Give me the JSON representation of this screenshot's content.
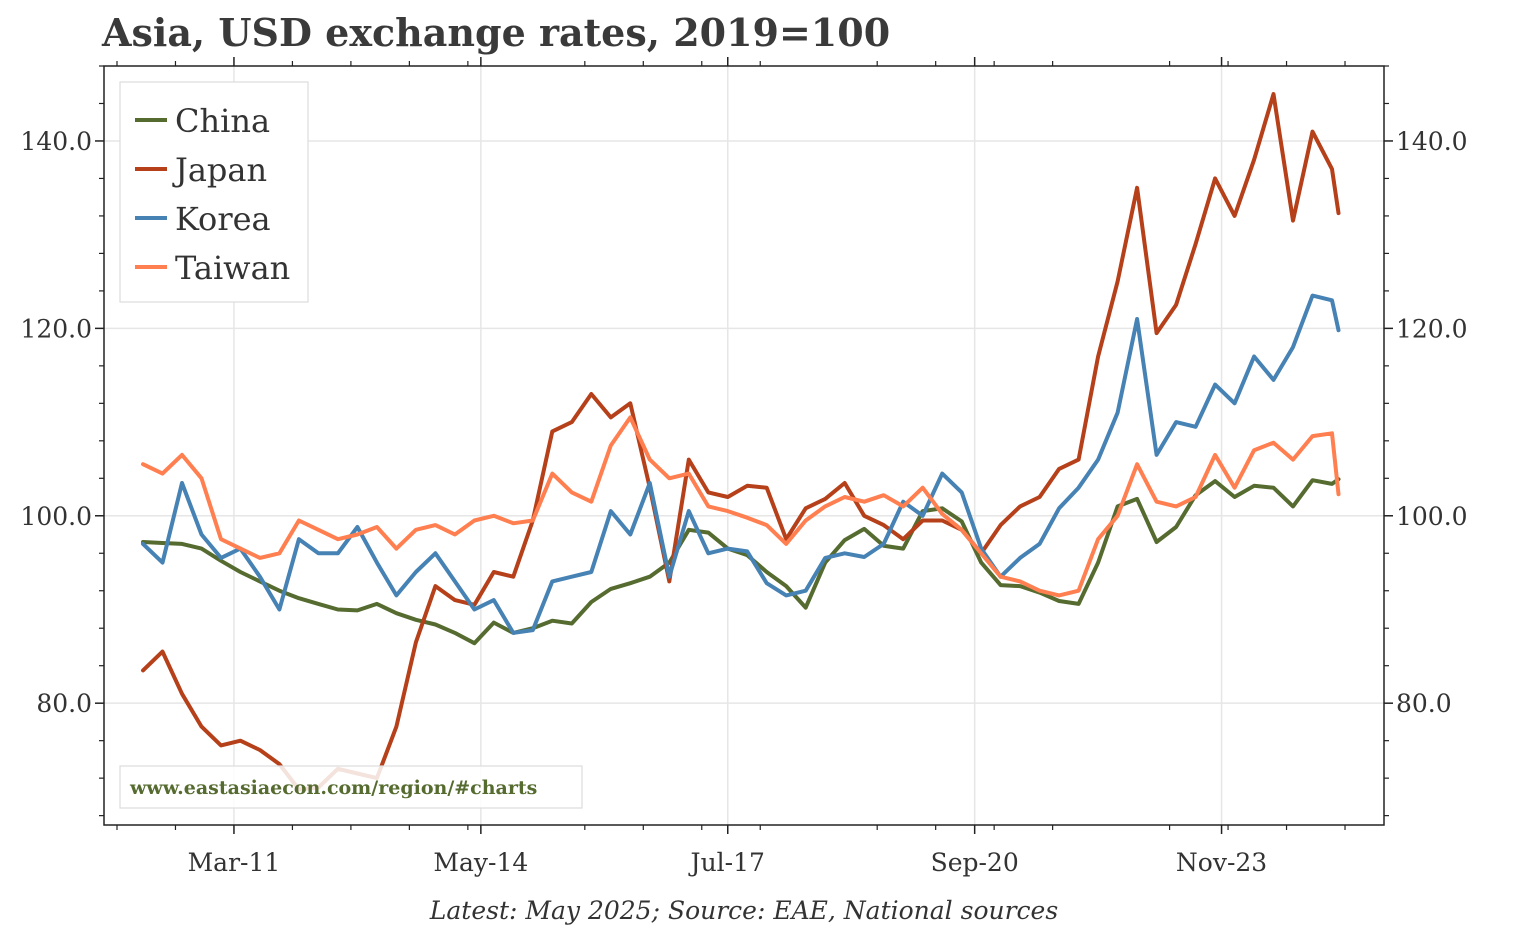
{
  "chart_data": {
    "type": "line",
    "title": "Asia, USD exchange rates, 2019=100",
    "xlabel": "",
    "ylabel": "",
    "ylim": [
      67,
      148
    ],
    "y_ticks": [
      80.0,
      100.0,
      120.0,
      140.0
    ],
    "y_tick_labels": [
      "80.0",
      "100.0",
      "120.0",
      "140.0"
    ],
    "x_tick_labels": [
      "Mar-11",
      "May-14",
      "Jul-17",
      "Sep-20",
      "Nov-23"
    ],
    "x_tick_dates": [
      "2011-03",
      "2014-05",
      "2017-07",
      "2020-09",
      "2023-11"
    ],
    "x_range": [
      "2009-07",
      "2025-12"
    ],
    "grid": true,
    "legend_position": "top-left",
    "source": "Latest: May 2025; Source: EAE, National sources",
    "watermark": "www.eastasiaecon.com/region/#charts",
    "series": [
      {
        "name": "China",
        "color": "#556b2f",
        "points": [
          [
            "2010-01",
            97.2
          ],
          [
            "2010-04",
            97.1
          ],
          [
            "2010-07",
            97.0
          ],
          [
            "2010-10",
            96.5
          ],
          [
            "2011-01",
            95.2
          ],
          [
            "2011-04",
            94.0
          ],
          [
            "2011-07",
            93.0
          ],
          [
            "2011-10",
            92.0
          ],
          [
            "2012-01",
            91.2
          ],
          [
            "2012-04",
            90.6
          ],
          [
            "2012-07",
            90.0
          ],
          [
            "2012-10",
            89.9
          ],
          [
            "2013-01",
            90.6
          ],
          [
            "2013-04",
            89.6
          ],
          [
            "2013-07",
            88.9
          ],
          [
            "2013-10",
            88.4
          ],
          [
            "2014-01",
            87.5
          ],
          [
            "2014-04",
            86.4
          ],
          [
            "2014-07",
            88.6
          ],
          [
            "2014-10",
            87.5
          ],
          [
            "2015-01",
            88.0
          ],
          [
            "2015-04",
            88.8
          ],
          [
            "2015-07",
            88.5
          ],
          [
            "2015-10",
            90.8
          ],
          [
            "2016-01",
            92.2
          ],
          [
            "2016-04",
            92.8
          ],
          [
            "2016-07",
            93.5
          ],
          [
            "2016-10",
            95.0
          ],
          [
            "2017-01",
            98.5
          ],
          [
            "2017-04",
            98.2
          ],
          [
            "2017-07",
            96.5
          ],
          [
            "2017-10",
            95.8
          ],
          [
            "2018-01",
            94.0
          ],
          [
            "2018-04",
            92.5
          ],
          [
            "2018-07",
            90.2
          ],
          [
            "2018-10",
            95.0
          ],
          [
            "2019-01",
            97.4
          ],
          [
            "2019-04",
            98.6
          ],
          [
            "2019-07",
            96.8
          ],
          [
            "2019-10",
            96.5
          ],
          [
            "2020-01",
            100.5
          ],
          [
            "2020-04",
            100.8
          ],
          [
            "2020-07",
            99.4
          ],
          [
            "2020-10",
            95.0
          ],
          [
            "2021-01",
            92.6
          ],
          [
            "2021-04",
            92.5
          ],
          [
            "2021-07",
            91.8
          ],
          [
            "2021-10",
            90.9
          ],
          [
            "2022-01",
            90.6
          ],
          [
            "2022-04",
            95.0
          ],
          [
            "2022-07",
            101.0
          ],
          [
            "2022-10",
            101.8
          ],
          [
            "2023-01",
            97.2
          ],
          [
            "2023-04",
            98.8
          ],
          [
            "2023-07",
            102.2
          ],
          [
            "2023-10",
            103.7
          ],
          [
            "2024-01",
            102.0
          ],
          [
            "2024-04",
            103.2
          ],
          [
            "2024-07",
            103.0
          ],
          [
            "2024-10",
            101.0
          ],
          [
            "2025-01",
            103.8
          ],
          [
            "2025-04",
            103.4
          ],
          [
            "2025-05",
            103.9
          ]
        ]
      },
      {
        "name": "Japan",
        "color": "#b5401a",
        "points": [
          [
            "2010-01",
            83.5
          ],
          [
            "2010-04",
            85.5
          ],
          [
            "2010-07",
            81.0
          ],
          [
            "2010-10",
            77.5
          ],
          [
            "2011-01",
            75.5
          ],
          [
            "2011-04",
            76.0
          ],
          [
            "2011-07",
            75.0
          ],
          [
            "2011-10",
            73.5
          ],
          [
            "2012-01",
            70.8
          ],
          [
            "2012-04",
            71.0
          ],
          [
            "2012-07",
            73.0
          ],
          [
            "2012-10",
            72.5
          ],
          [
            "2013-01",
            72.0
          ],
          [
            "2013-04",
            77.5
          ],
          [
            "2013-07",
            86.5
          ],
          [
            "2013-10",
            92.5
          ],
          [
            "2014-01",
            91.0
          ],
          [
            "2014-04",
            90.5
          ],
          [
            "2014-07",
            94.0
          ],
          [
            "2014-10",
            93.5
          ],
          [
            "2015-01",
            99.5
          ],
          [
            "2015-04",
            109.0
          ],
          [
            "2015-07",
            110.0
          ],
          [
            "2015-10",
            113.0
          ],
          [
            "2016-01",
            110.5
          ],
          [
            "2016-04",
            112.0
          ],
          [
            "2016-07",
            103.0
          ],
          [
            "2016-10",
            93.0
          ],
          [
            "2017-01",
            106.0
          ],
          [
            "2017-04",
            102.5
          ],
          [
            "2017-07",
            102.0
          ],
          [
            "2017-10",
            103.2
          ],
          [
            "2018-01",
            103.0
          ],
          [
            "2018-04",
            97.5
          ],
          [
            "2018-07",
            100.8
          ],
          [
            "2018-10",
            101.8
          ],
          [
            "2019-01",
            103.5
          ],
          [
            "2019-04",
            100.0
          ],
          [
            "2019-07",
            99.0
          ],
          [
            "2019-10",
            97.5
          ],
          [
            "2020-01",
            99.5
          ],
          [
            "2020-04",
            99.5
          ],
          [
            "2020-07",
            98.5
          ],
          [
            "2020-10",
            96.0
          ],
          [
            "2021-01",
            99.0
          ],
          [
            "2021-04",
            101.0
          ],
          [
            "2021-07",
            102.0
          ],
          [
            "2021-10",
            105.0
          ],
          [
            "2022-01",
            106.0
          ],
          [
            "2022-04",
            117.0
          ],
          [
            "2022-07",
            125.0
          ],
          [
            "2022-10",
            135.0
          ],
          [
            "2023-01",
            119.5
          ],
          [
            "2023-04",
            122.5
          ],
          [
            "2023-07",
            129.0
          ],
          [
            "2023-10",
            136.0
          ],
          [
            "2024-01",
            132.0
          ],
          [
            "2024-04",
            138.0
          ],
          [
            "2024-07",
            145.0
          ],
          [
            "2024-10",
            131.5
          ],
          [
            "2025-01",
            141.0
          ],
          [
            "2025-04",
            137.0
          ],
          [
            "2025-05",
            132.3
          ]
        ]
      },
      {
        "name": "Korea",
        "color": "#4682b4",
        "points": [
          [
            "2010-01",
            97.0
          ],
          [
            "2010-04",
            95.0
          ],
          [
            "2010-07",
            103.5
          ],
          [
            "2010-10",
            98.0
          ],
          [
            "2011-01",
            95.5
          ],
          [
            "2011-04",
            96.5
          ],
          [
            "2011-07",
            93.5
          ],
          [
            "2011-10",
            90.0
          ],
          [
            "2012-01",
            97.5
          ],
          [
            "2012-04",
            96.0
          ],
          [
            "2012-07",
            96.0
          ],
          [
            "2012-10",
            98.8
          ],
          [
            "2013-01",
            95.0
          ],
          [
            "2013-04",
            91.5
          ],
          [
            "2013-07",
            94.0
          ],
          [
            "2013-10",
            96.0
          ],
          [
            "2014-01",
            93.0
          ],
          [
            "2014-04",
            90.0
          ],
          [
            "2014-07",
            91.0
          ],
          [
            "2014-10",
            87.5
          ],
          [
            "2015-01",
            87.8
          ],
          [
            "2015-04",
            93.0
          ],
          [
            "2015-07",
            93.5
          ],
          [
            "2015-10",
            94.0
          ],
          [
            "2016-01",
            100.5
          ],
          [
            "2016-04",
            98.0
          ],
          [
            "2016-07",
            103.5
          ],
          [
            "2016-10",
            93.5
          ],
          [
            "2017-01",
            100.5
          ],
          [
            "2017-04",
            96.0
          ],
          [
            "2017-07",
            96.5
          ],
          [
            "2017-10",
            96.2
          ],
          [
            "2018-01",
            92.8
          ],
          [
            "2018-04",
            91.5
          ],
          [
            "2018-07",
            92.0
          ],
          [
            "2018-10",
            95.5
          ],
          [
            "2019-01",
            96.0
          ],
          [
            "2019-04",
            95.6
          ],
          [
            "2019-07",
            97.0
          ],
          [
            "2019-10",
            101.5
          ],
          [
            "2020-01",
            100.0
          ],
          [
            "2020-04",
            104.5
          ],
          [
            "2020-07",
            102.5
          ],
          [
            "2020-10",
            96.5
          ],
          [
            "2021-01",
            93.5
          ],
          [
            "2021-04",
            95.5
          ],
          [
            "2021-07",
            97.0
          ],
          [
            "2021-10",
            100.8
          ],
          [
            "2022-01",
            103.0
          ],
          [
            "2022-04",
            106.0
          ],
          [
            "2022-07",
            111.0
          ],
          [
            "2022-10",
            121.0
          ],
          [
            "2023-01",
            106.5
          ],
          [
            "2023-04",
            110.0
          ],
          [
            "2023-07",
            109.5
          ],
          [
            "2023-10",
            114.0
          ],
          [
            "2024-01",
            112.0
          ],
          [
            "2024-04",
            117.0
          ],
          [
            "2024-07",
            114.5
          ],
          [
            "2024-10",
            118.0
          ],
          [
            "2025-01",
            123.5
          ],
          [
            "2025-04",
            123.0
          ],
          [
            "2025-05",
            119.8
          ]
        ]
      },
      {
        "name": "Taiwan",
        "color": "#ff7f50",
        "points": [
          [
            "2010-01",
            105.5
          ],
          [
            "2010-04",
            104.5
          ],
          [
            "2010-07",
            106.5
          ],
          [
            "2010-10",
            104.0
          ],
          [
            "2011-01",
            97.5
          ],
          [
            "2011-04",
            96.5
          ],
          [
            "2011-07",
            95.5
          ],
          [
            "2011-10",
            96.0
          ],
          [
            "2012-01",
            99.5
          ],
          [
            "2012-04",
            98.5
          ],
          [
            "2012-07",
            97.5
          ],
          [
            "2012-10",
            98.0
          ],
          [
            "2013-01",
            98.8
          ],
          [
            "2013-04",
            96.5
          ],
          [
            "2013-07",
            98.5
          ],
          [
            "2013-10",
            99.0
          ],
          [
            "2014-01",
            98.0
          ],
          [
            "2014-04",
            99.5
          ],
          [
            "2014-07",
            100.0
          ],
          [
            "2014-10",
            99.2
          ],
          [
            "2015-01",
            99.5
          ],
          [
            "2015-04",
            104.5
          ],
          [
            "2015-07",
            102.5
          ],
          [
            "2015-10",
            101.5
          ],
          [
            "2016-01",
            107.5
          ],
          [
            "2016-04",
            110.5
          ],
          [
            "2016-07",
            106.0
          ],
          [
            "2016-10",
            104.0
          ],
          [
            "2017-01",
            104.5
          ],
          [
            "2017-04",
            101.0
          ],
          [
            "2017-07",
            100.5
          ],
          [
            "2017-10",
            99.8
          ],
          [
            "2018-01",
            99.0
          ],
          [
            "2018-04",
            97.0
          ],
          [
            "2018-07",
            99.5
          ],
          [
            "2018-10",
            101.0
          ],
          [
            "2019-01",
            102.0
          ],
          [
            "2019-04",
            101.5
          ],
          [
            "2019-07",
            102.2
          ],
          [
            "2019-10",
            101.0
          ],
          [
            "2020-01",
            103.0
          ],
          [
            "2020-04",
            100.2
          ],
          [
            "2020-07",
            98.5
          ],
          [
            "2020-10",
            96.0
          ],
          [
            "2021-01",
            93.5
          ],
          [
            "2021-04",
            93.0
          ],
          [
            "2021-07",
            92.0
          ],
          [
            "2021-10",
            91.5
          ],
          [
            "2022-01",
            92.0
          ],
          [
            "2022-04",
            97.5
          ],
          [
            "2022-07",
            100.0
          ],
          [
            "2022-10",
            105.5
          ],
          [
            "2023-01",
            101.5
          ],
          [
            "2023-04",
            101.0
          ],
          [
            "2023-07",
            102.0
          ],
          [
            "2023-10",
            106.5
          ],
          [
            "2024-01",
            103.0
          ],
          [
            "2024-04",
            107.0
          ],
          [
            "2024-07",
            107.8
          ],
          [
            "2024-10",
            106.0
          ],
          [
            "2025-01",
            108.5
          ],
          [
            "2025-04",
            108.8
          ],
          [
            "2025-05",
            102.3
          ]
        ]
      }
    ]
  }
}
